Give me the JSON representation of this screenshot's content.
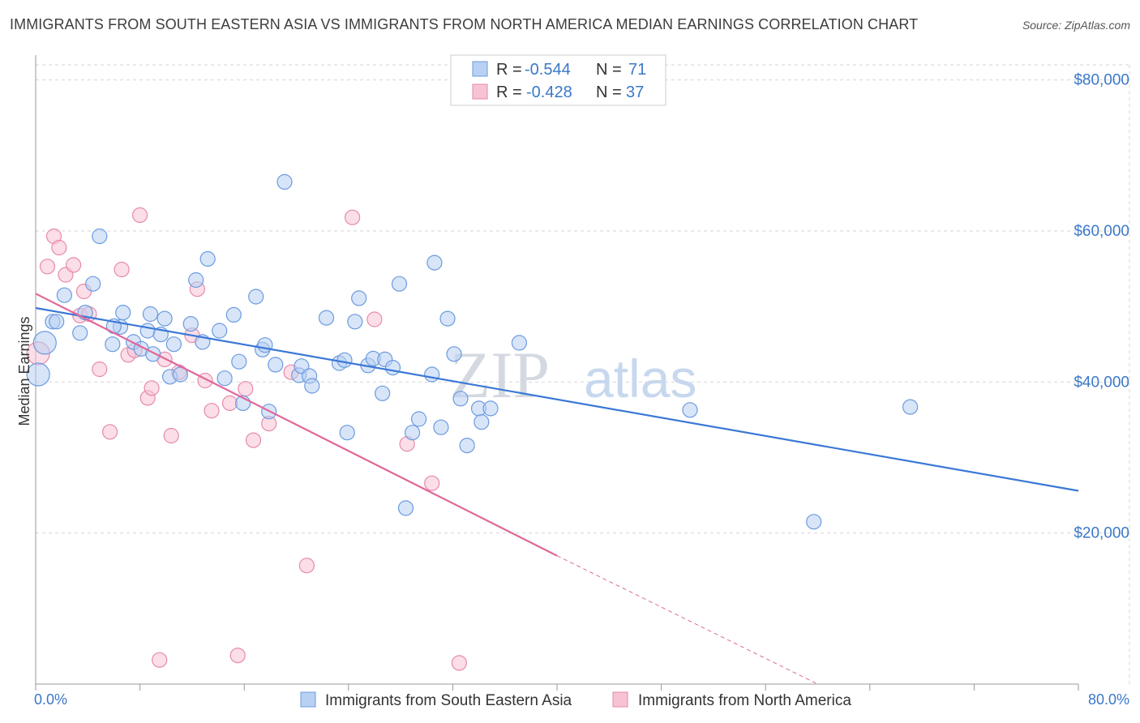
{
  "title": "IMMIGRANTS FROM SOUTH EASTERN ASIA VS IMMIGRANTS FROM NORTH AMERICA MEDIAN EARNINGS CORRELATION CHART",
  "source": "Source: ZipAtlas.com",
  "watermark": {
    "zip": "ZIP",
    "atlas": "atlas"
  },
  "colors": {
    "blue": "#3a78d6",
    "pink": "#e0689a",
    "blue_fill": "#b8d0f2",
    "pink_fill": "#f7c3d4"
  },
  "legend": {
    "r_label": "R =",
    "n_label": "N =",
    "rows": [
      {
        "r": "-0.544",
        "n": "71"
      },
      {
        "r": "-0.428",
        "n": "37"
      }
    ]
  },
  "chart_data": {
    "type": "scatter",
    "title": "IMMIGRANTS FROM SOUTH EASTERN ASIA VS IMMIGRANTS FROM NORTH AMERICA MEDIAN EARNINGS CORRELATION CHART",
    "xlabel": "",
    "ylabel": "Median Earnings",
    "xlim": [
      0,
      80
    ],
    "ylim": [
      0,
      82000
    ],
    "x_tick_labels": [
      "0.0%",
      "80.0%"
    ],
    "y_ticks": [
      20000,
      40000,
      60000,
      80000
    ],
    "y_tick_labels": [
      "$20,000",
      "$40,000",
      "$60,000",
      "$80,000"
    ],
    "grid": true,
    "legend_position": "top-center",
    "series": [
      {
        "name": "Immigrants from South Eastern Asia",
        "color": "#3a78d6",
        "r": -0.544,
        "n": 71,
        "trend": {
          "x": [
            0,
            80
          ],
          "y": [
            49800,
            25600
          ]
        },
        "points": [
          [
            0.2,
            41000
          ],
          [
            0.7,
            45200
          ],
          [
            1.3,
            48000
          ],
          [
            1.6,
            48000
          ],
          [
            2.2,
            51500
          ],
          [
            3.4,
            46500
          ],
          [
            4.4,
            53000
          ],
          [
            4.9,
            59300
          ],
          [
            5.9,
            45000
          ],
          [
            6.5,
            47300
          ],
          [
            6.7,
            49200
          ],
          [
            7.5,
            45300
          ],
          [
            8.1,
            44400
          ],
          [
            8.6,
            46800
          ],
          [
            8.8,
            49000
          ],
          [
            9.6,
            46300
          ],
          [
            9.9,
            48400
          ],
          [
            10.3,
            40700
          ],
          [
            10.6,
            45000
          ],
          [
            11.1,
            41000
          ],
          [
            11.9,
            47700
          ],
          [
            12.3,
            53500
          ],
          [
            12.8,
            45300
          ],
          [
            13.2,
            56300
          ],
          [
            14.1,
            46800
          ],
          [
            14.5,
            40500
          ],
          [
            15.2,
            48900
          ],
          [
            15.6,
            42700
          ],
          [
            15.9,
            37200
          ],
          [
            16.9,
            51300
          ],
          [
            17.4,
            44300
          ],
          [
            17.6,
            44900
          ],
          [
            17.9,
            36100
          ],
          [
            18.4,
            42300
          ],
          [
            19.1,
            66500
          ],
          [
            20.2,
            40900
          ],
          [
            20.4,
            42100
          ],
          [
            21.0,
            40800
          ],
          [
            21.2,
            39500
          ],
          [
            22.3,
            48500
          ],
          [
            23.3,
            42500
          ],
          [
            23.7,
            42900
          ],
          [
            23.9,
            33300
          ],
          [
            24.5,
            48000
          ],
          [
            24.8,
            51100
          ],
          [
            25.5,
            42200
          ],
          [
            25.9,
            43100
          ],
          [
            26.6,
            38500
          ],
          [
            26.8,
            43000
          ],
          [
            27.4,
            41900
          ],
          [
            27.9,
            53000
          ],
          [
            28.4,
            23300
          ],
          [
            28.9,
            33300
          ],
          [
            29.4,
            35100
          ],
          [
            30.4,
            41000
          ],
          [
            30.6,
            55800
          ],
          [
            31.1,
            34000
          ],
          [
            31.6,
            48400
          ],
          [
            32.1,
            43700
          ],
          [
            32.6,
            37800
          ],
          [
            33.1,
            31600
          ],
          [
            34.0,
            36500
          ],
          [
            34.2,
            34700
          ],
          [
            34.9,
            36500
          ],
          [
            37.1,
            45200
          ],
          [
            50.2,
            36300
          ],
          [
            59.7,
            21500
          ],
          [
            67.1,
            36700
          ],
          [
            3.8,
            49200
          ],
          [
            6.0,
            47400
          ],
          [
            9.0,
            43700
          ]
        ]
      },
      {
        "name": "Immigrants from North America",
        "color": "#e0689a",
        "r": -0.428,
        "n": 37,
        "trend": {
          "x": [
            0,
            40
          ],
          "y": [
            51700,
            17000
          ],
          "dashed_to": {
            "x": 60,
            "y": -200
          }
        },
        "points": [
          [
            0.2,
            43800
          ],
          [
            0.9,
            55300
          ],
          [
            1.4,
            59300
          ],
          [
            1.8,
            57800
          ],
          [
            2.3,
            54200
          ],
          [
            2.9,
            55500
          ],
          [
            3.4,
            48800
          ],
          [
            3.7,
            52000
          ],
          [
            4.1,
            49000
          ],
          [
            4.9,
            41700
          ],
          [
            5.7,
            33400
          ],
          [
            6.6,
            54900
          ],
          [
            7.1,
            43600
          ],
          [
            7.6,
            44200
          ],
          [
            8.0,
            62100
          ],
          [
            8.6,
            37900
          ],
          [
            8.9,
            39200
          ],
          [
            9.5,
            3200
          ],
          [
            9.9,
            43000
          ],
          [
            10.4,
            32900
          ],
          [
            11.0,
            41300
          ],
          [
            12.0,
            46200
          ],
          [
            12.4,
            52300
          ],
          [
            13.0,
            40200
          ],
          [
            13.5,
            36200
          ],
          [
            14.9,
            37200
          ],
          [
            15.5,
            3800
          ],
          [
            16.1,
            39100
          ],
          [
            16.7,
            32300
          ],
          [
            17.9,
            34500
          ],
          [
            19.6,
            41300
          ],
          [
            20.8,
            15700
          ],
          [
            24.3,
            61800
          ],
          [
            26.0,
            48300
          ],
          [
            28.5,
            31800
          ],
          [
            30.4,
            26600
          ],
          [
            32.5,
            2800
          ]
        ]
      }
    ]
  }
}
